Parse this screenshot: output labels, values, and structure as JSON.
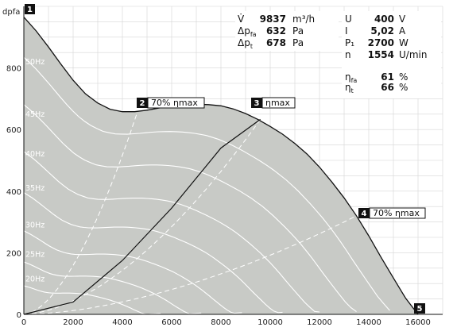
{
  "chart_data": {
    "type": "line",
    "ylabel": "dpfa",
    "xlim": [
      0,
      17000
    ],
    "ylim": [
      0,
      1000
    ],
    "x_ticks": [
      0,
      2000,
      4000,
      6000,
      8000,
      10000,
      12000,
      14000,
      16000
    ],
    "y_ticks": [
      0,
      200,
      400,
      600,
      800
    ],
    "grid": true,
    "envelope": {
      "x": [
        0,
        500,
        1000,
        1500,
        2000,
        2500,
        3000,
        3500,
        4000,
        4500,
        5000,
        5500,
        6000,
        6500,
        7000,
        7500,
        8000,
        8500,
        9000,
        9500,
        10000,
        10500,
        11000,
        11500,
        12000,
        12500,
        13000,
        13500,
        14000,
        14500,
        15000,
        15500,
        16000
      ],
      "y": [
        965,
        920,
        868,
        813,
        760,
        716,
        686,
        666,
        658,
        658,
        663,
        670,
        676,
        680,
        682,
        681,
        677,
        667,
        652,
        633,
        610,
        585,
        555,
        520,
        478,
        430,
        378,
        320,
        255,
        185,
        118,
        52,
        0
      ]
    },
    "speed_curves": [
      {
        "label": "50Hz",
        "label_at": [
          0,
          820
        ]
      },
      {
        "label": "45Hz",
        "label_at": [
          0,
          650
        ]
      },
      {
        "label": "40Hz",
        "label_at": [
          0,
          520
        ]
      },
      {
        "label": "35Hz",
        "label_at": [
          0,
          410
        ]
      },
      {
        "label": "30Hz",
        "label_at": [
          0,
          290
        ]
      },
      {
        "label": "25Hz",
        "label_at": [
          0,
          195
        ]
      },
      {
        "label": "20Hz",
        "label_at": [
          0,
          115
        ]
      }
    ],
    "system_curve": {
      "x": [
        0,
        2000,
        4000,
        6000,
        8000,
        9600
      ],
      "y": [
        0,
        40,
        175,
        345,
        540,
        633
      ]
    },
    "efficiency_lines": [
      {
        "x": [
          0,
          4600
        ],
        "y": [
          0,
          655
        ]
      },
      {
        "x": [
          0,
          13500
        ],
        "y": [
          0,
          320
        ]
      },
      {
        "x": [
          0,
          9600
        ],
        "y": [
          0,
          633
        ]
      }
    ],
    "markers": [
      {
        "id": "1",
        "text": ""
      },
      {
        "id": "2",
        "text": "70% ηmax"
      },
      {
        "id": "3",
        "text": "ηmax"
      },
      {
        "id": "4",
        "text": "70% ηmax"
      },
      {
        "id": "5",
        "text": ""
      }
    ]
  },
  "info": {
    "left": [
      {
        "sym": "V̇",
        "value": "9837",
        "unit": "m³/h"
      },
      {
        "sym": "Δp",
        "sub": "fa",
        "value": "632",
        "unit": "Pa"
      },
      {
        "sym": "Δp",
        "sub": "t",
        "value": "678",
        "unit": "Pa"
      }
    ],
    "right": [
      {
        "sym": "U",
        "value": "400",
        "unit": "V"
      },
      {
        "sym": "I",
        "value": "5,02",
        "unit": "A"
      },
      {
        "sym": "P₁",
        "value": "2700",
        "unit": "W"
      },
      {
        "sym": "n",
        "value": "1554",
        "unit": "U/min"
      }
    ],
    "eff": [
      {
        "sym": "η",
        "sub": "fa",
        "value": "61",
        "unit": "%"
      },
      {
        "sym": "η",
        "sub": "t",
        "value": "66",
        "unit": "%"
      }
    ]
  }
}
